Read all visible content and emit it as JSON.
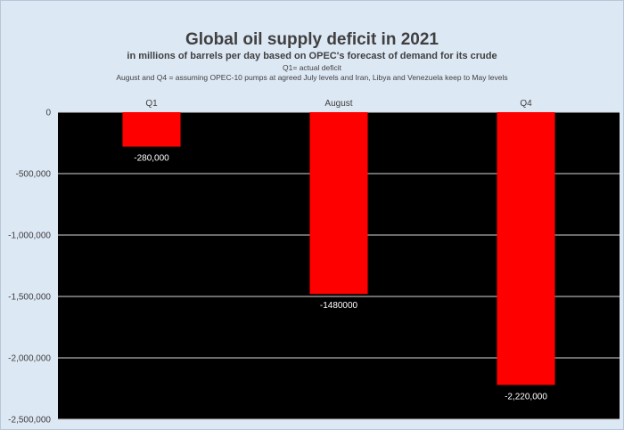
{
  "chart_data": {
    "type": "bar",
    "title": "Global oil supply deficit in 2021",
    "subtitle": "in millions of barrels per day based on OPEC's forecast of demand for its crude",
    "notes": [
      "Q1= actual deficit",
      "August and Q4 = assuming OPEC-10 pumps at agreed July levels and Iran, Libya and Venezuela keep to May levels"
    ],
    "categories": [
      "Q1",
      "August",
      "Q4"
    ],
    "values": [
      -280000,
      -1480000,
      -2220000
    ],
    "data_labels": [
      "-280,000",
      "-1480000",
      "-2,220,000"
    ],
    "ylim": [
      -2500000,
      0
    ],
    "yticks": [
      0,
      -500000,
      -1000000,
      -1500000,
      -2000000,
      -2500000
    ],
    "ytick_labels": [
      "0",
      "-500,000",
      "-1,000,000",
      "-1,500,000",
      "-2,000,000",
      "-2,500,000"
    ],
    "xaxis_position": "top",
    "bar_color": "#ff0000",
    "plot_background": "#000000",
    "chart_background": "#dde8f5",
    "grid": true,
    "legend": "none"
  }
}
